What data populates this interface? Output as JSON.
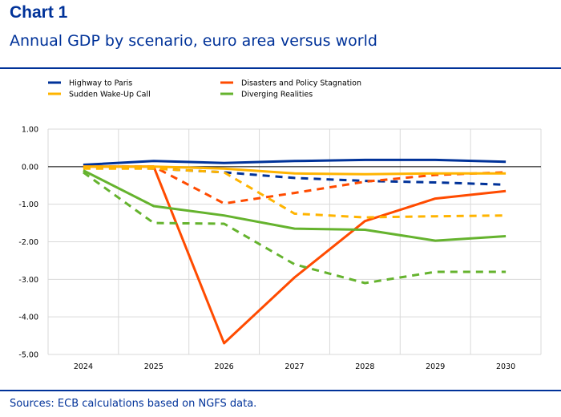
{
  "header": {
    "chart_label": "Chart 1",
    "title": "Annual GDP by scenario, euro area versus world"
  },
  "footer": {
    "sources": "Sources: ECB calculations based on NGFS data."
  },
  "chart_data": {
    "type": "line",
    "title": "Annual GDP by scenario, euro area versus world",
    "x": [
      "2024",
      "2025",
      "2026",
      "2027",
      "2028",
      "2029",
      "2030"
    ],
    "y_ticks": [
      "1.00",
      "0.00",
      "-1.00",
      "-2.00",
      "-3.00",
      "-4.00",
      "-5.00"
    ],
    "ylim": [
      -5,
      1
    ],
    "grid": true,
    "legend_position": "top",
    "series": [
      {
        "name": "Highway to Paris",
        "color": "#003299",
        "dash": "solid",
        "values": [
          0.05,
          0.15,
          0.1,
          0.15,
          0.18,
          0.18,
          0.13
        ]
      },
      {
        "name": "",
        "color": "#003299",
        "dash": "dashed",
        "values": [
          0.0,
          -0.05,
          -0.15,
          -0.3,
          -0.38,
          -0.42,
          -0.48
        ]
      },
      {
        "name": "Disasters and Policy Stagnation",
        "color": "#ff4b00",
        "dash": "solid",
        "values": [
          0.0,
          0.0,
          -4.7,
          -2.95,
          -1.45,
          -0.85,
          -0.65
        ]
      },
      {
        "name": "",
        "color": "#ff4b00",
        "dash": "dashed",
        "values": [
          0.0,
          0.0,
          -0.98,
          -0.7,
          -0.4,
          -0.22,
          -0.15
        ]
      },
      {
        "name": "Sudden Wake-Up Call",
        "color": "#ffb400",
        "dash": "solid",
        "values": [
          0.0,
          0.0,
          -0.05,
          -0.18,
          -0.2,
          -0.18,
          -0.18
        ]
      },
      {
        "name": "",
        "color": "#ffb400",
        "dash": "dashed",
        "values": [
          -0.05,
          -0.05,
          -0.15,
          -1.25,
          -1.35,
          -1.32,
          -1.3
        ]
      },
      {
        "name": "Diverging Realities",
        "color": "#65b32e",
        "dash": "solid",
        "values": [
          -0.1,
          -1.05,
          -1.3,
          -1.65,
          -1.68,
          -1.97,
          -1.85
        ]
      },
      {
        "name": "",
        "color": "#65b32e",
        "dash": "dashed",
        "values": [
          -0.15,
          -1.5,
          -1.52,
          -2.6,
          -3.1,
          -2.8,
          -2.8
        ]
      }
    ]
  }
}
